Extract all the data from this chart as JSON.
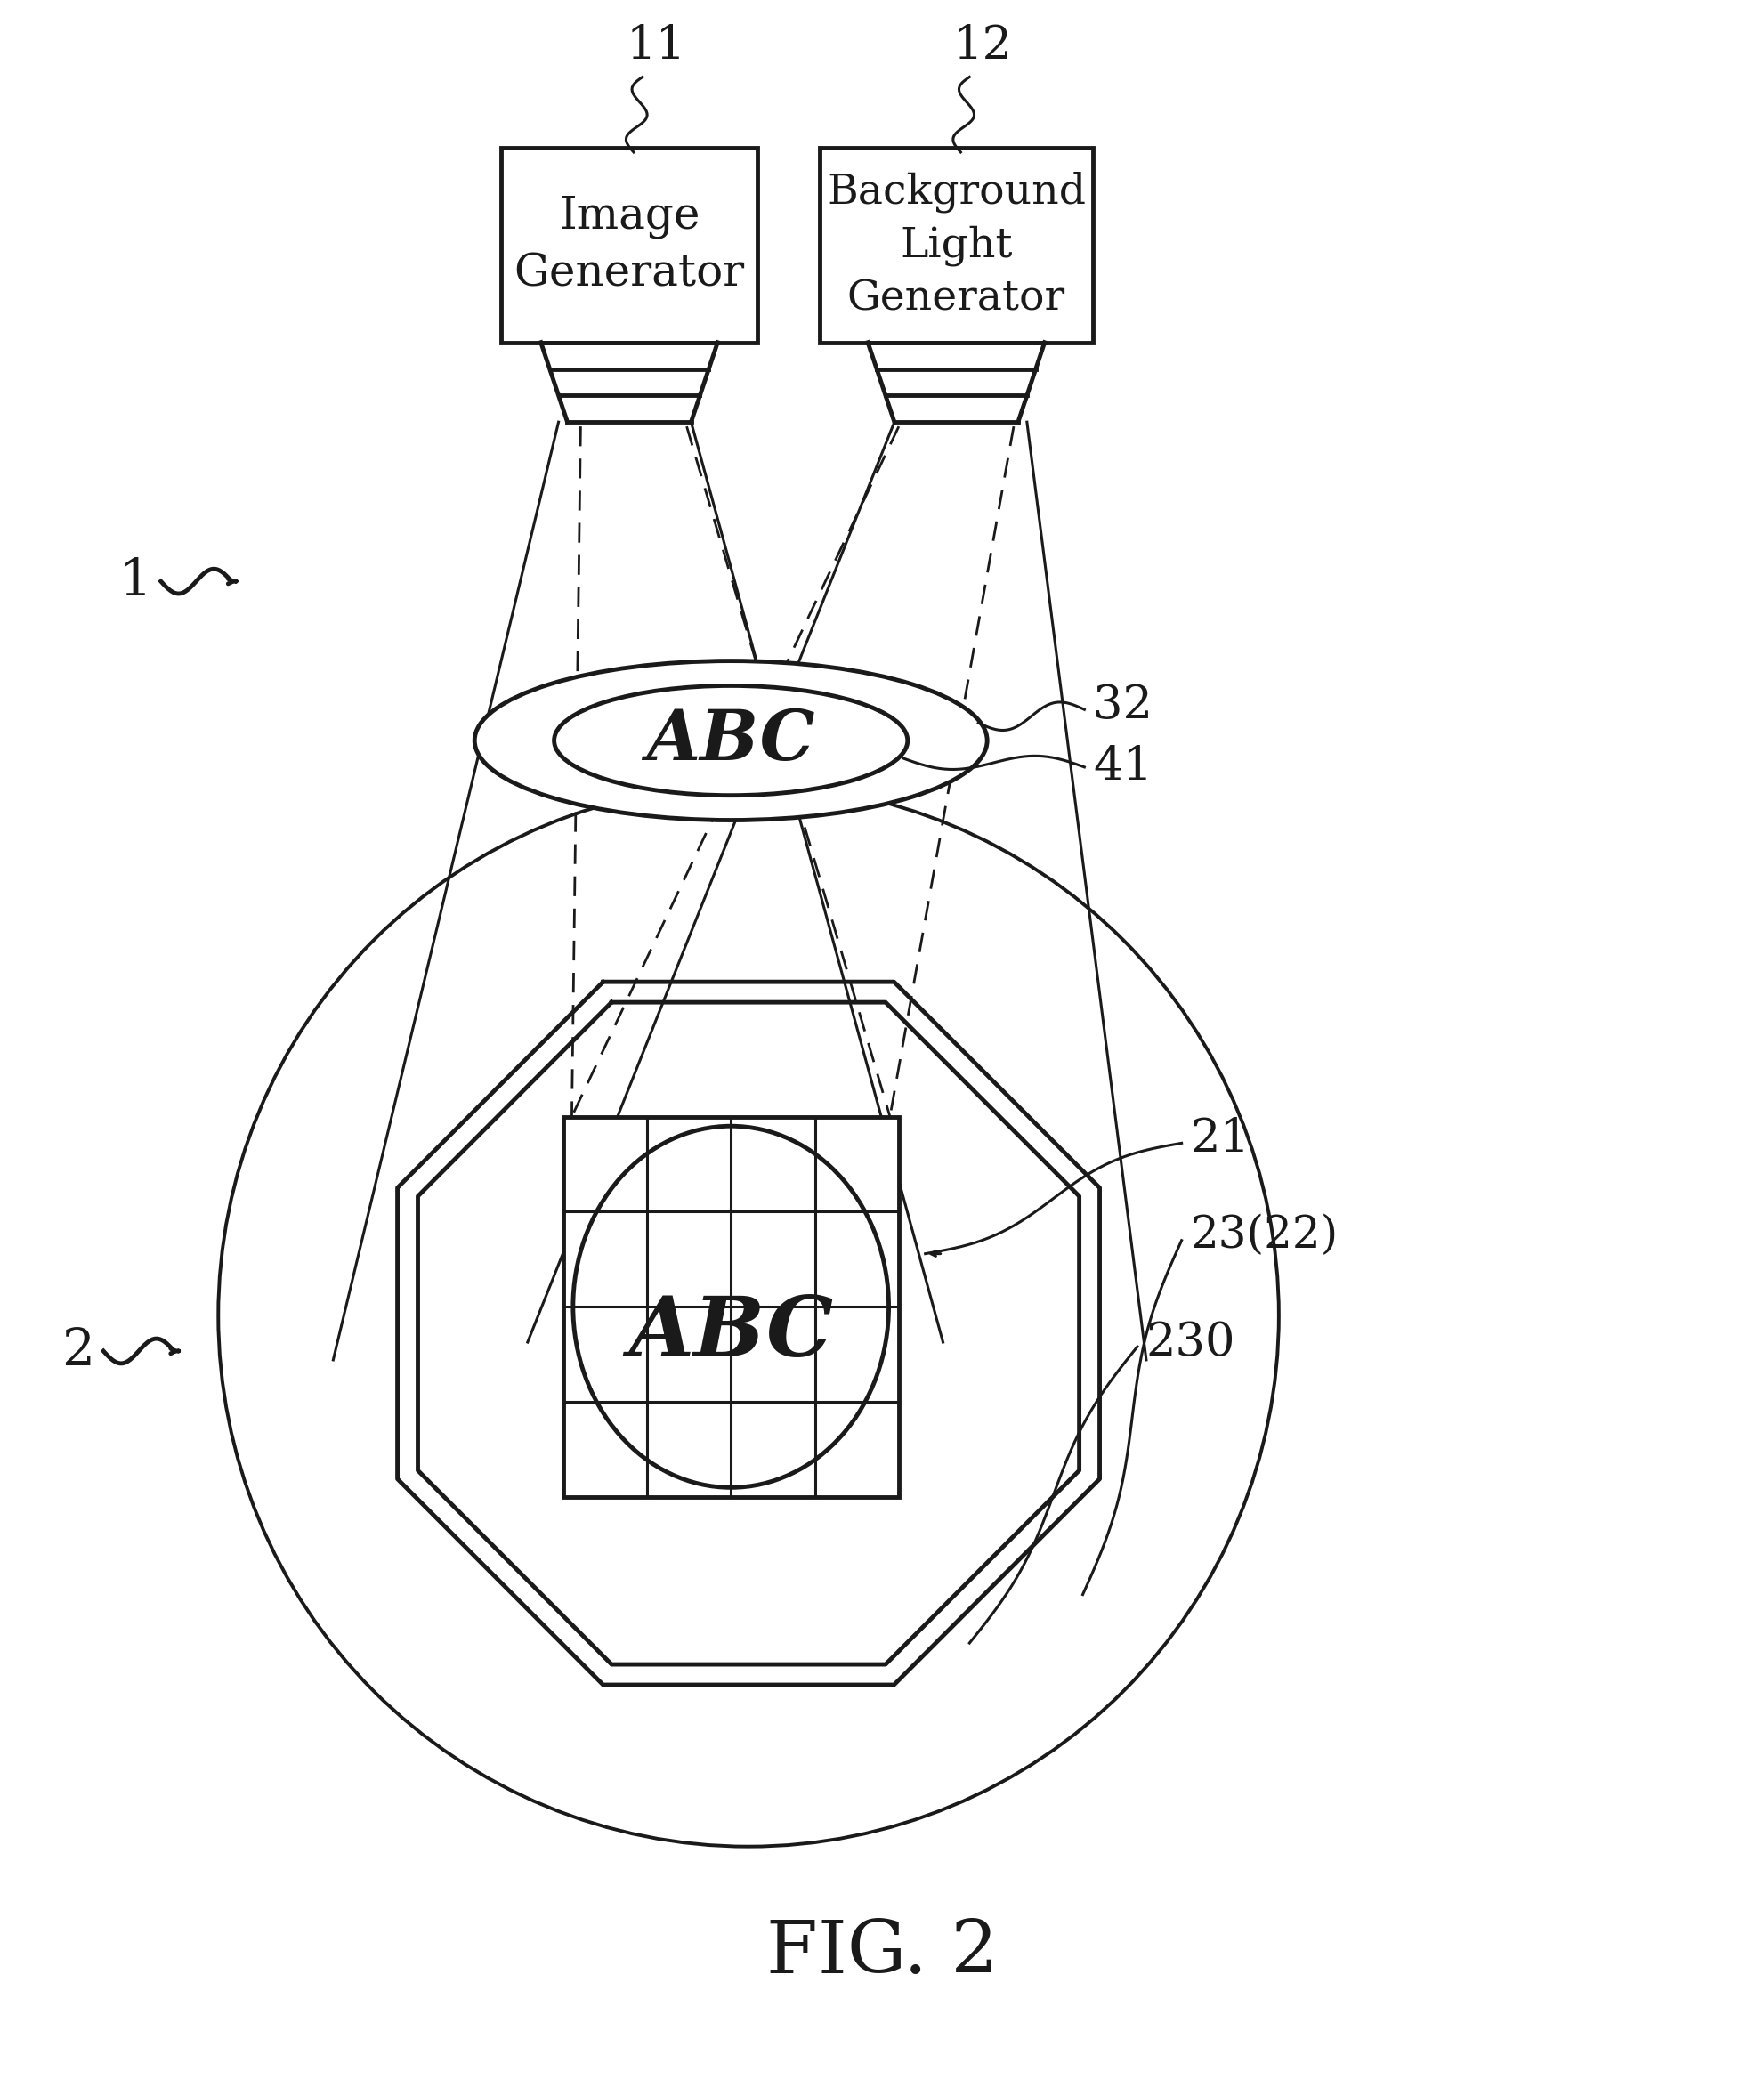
{
  "bg_color": "#ffffff",
  "line_color": "#1a1a1a",
  "fig_title": "FIG. 2",
  "fig_width": 19.83,
  "fig_height": 23.55,
  "label_1": "1",
  "label_2": "2",
  "label_11": "11",
  "label_12": "12",
  "label_21": "21",
  "label_23_22": "23(22)",
  "label_230": "230",
  "label_32": "32",
  "label_41": "41",
  "box11_text": "Image\nGenerator",
  "box12_text": "Background\nLight\nGenerator"
}
